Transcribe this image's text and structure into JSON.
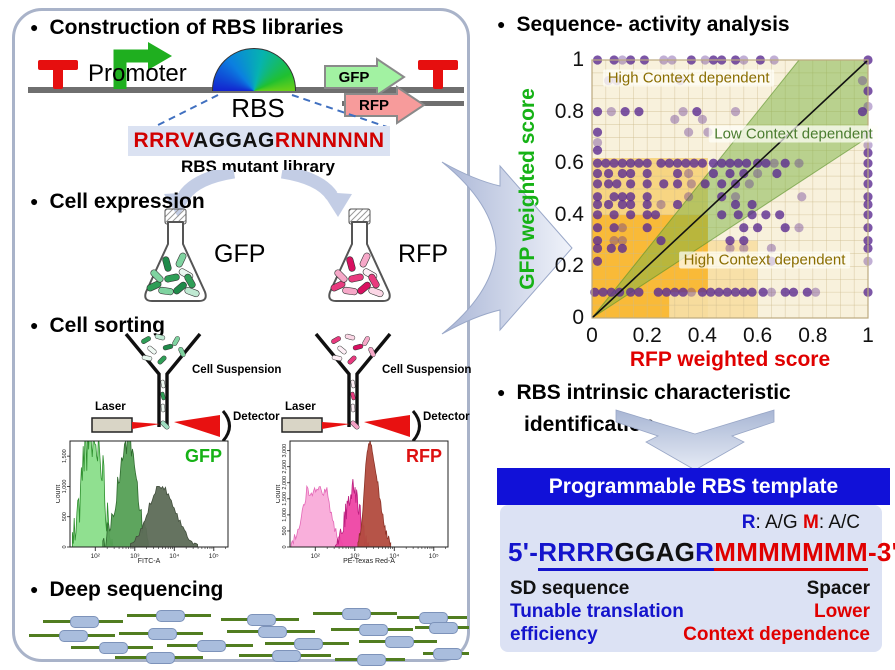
{
  "left_panel": {
    "construction": {
      "title": "Construction of RBS libraries",
      "promoter_label": "Promoter",
      "rbs_label": "RBS",
      "gfp_gene_label": "GFP",
      "rfp_gene_label": "RFP",
      "sequence_parts": {
        "sd_upstream": "RRRV",
        "core": "AGGAG",
        "spacer": "RNNNNNN"
      },
      "library_label": "RBS mutant library"
    },
    "expression": {
      "title": "Cell expression",
      "gfp_label": "GFP",
      "rfp_label": "RFP"
    },
    "sorting": {
      "title": "Cell sorting",
      "cell_suspension_label": "Cell Suspension",
      "laser_label": "Laser",
      "detector_label": "Detector"
    },
    "sequencing": {
      "title": "Deep sequencing",
      "reads": [
        [
          18,
          12,
          80
        ],
        [
          102,
          6,
          84
        ],
        [
          196,
          10,
          78
        ],
        [
          288,
          4,
          84
        ],
        [
          372,
          8,
          70
        ],
        [
          4,
          26,
          86
        ],
        [
          94,
          24,
          84
        ],
        [
          202,
          22,
          88
        ],
        [
          306,
          20,
          82
        ],
        [
          390,
          18,
          54
        ],
        [
          46,
          38,
          82
        ],
        [
          142,
          36,
          86
        ],
        [
          240,
          34,
          84
        ],
        [
          334,
          32,
          78
        ],
        [
          398,
          44,
          46
        ],
        [
          90,
          48,
          88
        ],
        [
          214,
          46,
          92
        ],
        [
          310,
          50,
          70
        ]
      ]
    }
  },
  "right_panel": {
    "analysis_title": "Sequence- activity analysis",
    "identification_title_line1": "RBS intrinsic characteristic",
    "identification_title_line2": "identification",
    "template": {
      "banner": "Programmable RBS template",
      "legend": {
        "r_key": "R",
        "r_def": ": A/G",
        "m_key": "M",
        "m_def": ": A/C"
      },
      "sequence": {
        "prefix": "5'-",
        "sd": "RRRR",
        "core": "GGAG",
        "r_link": "R",
        "spacer": "MMMMMMM",
        "suffix": "-3'"
      },
      "captions": {
        "sd": "SD sequence",
        "spacer": "Spacer",
        "left_line1": "Tunable translation",
        "left_line2": "efficiency",
        "right_line1": "Lower",
        "right_line2": "Context dependence"
      }
    }
  },
  "colors": {
    "accent_blue": "#1414cc",
    "strong_red": "#e00000",
    "banner_blue": "#1111d8",
    "gfp_green": "#16b216",
    "promoter_green": "#1faf1f",
    "terminator_red": "#e60f0f",
    "dot_purple": "#5b2c91",
    "panel_border": "#a9b3c9",
    "template_panel_bg": "#dce2f4"
  },
  "chart_data": [
    {
      "id": "scatter",
      "type": "scatter",
      "xlabel": "RFP weighted score",
      "ylabel": "GFP weighted score",
      "xlim": [
        0,
        1
      ],
      "ylim": [
        0,
        1
      ],
      "xticks": [
        "0",
        "0.2",
        "0.4",
        "0.6",
        "0.8",
        "1"
      ],
      "yticks": [
        "0",
        "0.2",
        "0.4",
        "0.6",
        "0.8",
        "1"
      ],
      "grid": true,
      "grid_step": 0.05,
      "legend_position": "none",
      "annotations": [
        {
          "text": "High Context dependent",
          "x": 0.35,
          "y": 0.93,
          "color": "#8a6d00"
        },
        {
          "text": "Low Context dependent",
          "x": 0.73,
          "y": 0.715,
          "color": "#4a7c2f"
        },
        {
          "text": "High Context dependent",
          "x": 0.625,
          "y": 0.225,
          "color": "#8a6d00"
        }
      ],
      "regions": [
        {
          "x0": 0,
          "y0": 0.4,
          "x1": 0.42,
          "y1": 0.62,
          "color": "rgba(246,189,56,0.55)"
        },
        {
          "x0": 0,
          "y0": 0.1,
          "x1": 0.42,
          "y1": 0.4,
          "color": "rgba(248,170,10,0.78)"
        },
        {
          "x0": 0,
          "y0": 0,
          "x1": 0.28,
          "y1": 0.1,
          "color": "rgba(248,170,10,0.78)"
        },
        {
          "x0": 0.28,
          "y0": 0,
          "x1": 0.42,
          "y1": 0.1,
          "color": "rgba(247,195,80,0.45)"
        },
        {
          "x0": 0.42,
          "y0": 0,
          "x1": 0.6,
          "y1": 0.3,
          "color": "rgba(247,200,90,0.40)"
        }
      ],
      "band_polygon": [
        [
          0,
          0
        ],
        [
          0.75,
          1
        ],
        [
          1,
          1
        ],
        [
          1,
          0.7
        ]
      ],
      "identity_line": [
        [
          0,
          0
        ],
        [
          1,
          1
        ]
      ],
      "point_color": "#5b2c91",
      "points": [
        [
          0.02,
          1,
          0
        ],
        [
          0.08,
          1,
          0
        ],
        [
          0.11,
          1,
          1
        ],
        [
          0.14,
          1,
          0
        ],
        [
          0.19,
          1,
          0
        ],
        [
          0.26,
          1,
          1
        ],
        [
          0.29,
          1,
          1
        ],
        [
          0.36,
          1,
          0
        ],
        [
          0.41,
          1,
          1
        ],
        [
          0.44,
          1,
          0
        ],
        [
          0.47,
          1,
          0
        ],
        [
          0.52,
          1,
          0
        ],
        [
          0.55,
          1,
          1
        ],
        [
          0.61,
          1,
          0
        ],
        [
          0.66,
          1,
          1
        ],
        [
          1,
          1,
          0
        ],
        [
          0.06,
          0.92,
          1
        ],
        [
          0.09,
          0.92,
          1
        ],
        [
          0.32,
          0.92,
          1
        ],
        [
          0.98,
          0.92,
          1
        ],
        [
          1,
          0.88,
          0
        ],
        [
          0.02,
          0.8,
          0
        ],
        [
          0.07,
          0.8,
          1
        ],
        [
          0.12,
          0.8,
          0
        ],
        [
          0.17,
          0.8,
          0
        ],
        [
          0.33,
          0.8,
          1
        ],
        [
          0.38,
          0.8,
          0
        ],
        [
          0.52,
          0.8,
          1
        ],
        [
          0.98,
          0.8,
          0
        ],
        [
          1,
          0.82,
          1
        ],
        [
          0.3,
          0.77,
          1
        ],
        [
          0.4,
          0.77,
          1
        ],
        [
          0.02,
          0.72,
          0
        ],
        [
          0.35,
          0.72,
          1
        ],
        [
          0.42,
          0.72,
          1
        ],
        [
          1,
          0.71,
          1
        ],
        [
          0.02,
          0.68,
          1
        ],
        [
          1,
          0.67,
          1
        ],
        [
          0.02,
          0.65,
          0
        ],
        [
          1,
          0.64,
          0
        ],
        [
          0.02,
          0.6,
          0
        ],
        [
          0.05,
          0.6,
          0
        ],
        [
          0.08,
          0.6,
          0
        ],
        [
          0.11,
          0.6,
          0
        ],
        [
          0.14,
          0.6,
          0
        ],
        [
          0.17,
          0.6,
          0
        ],
        [
          0.2,
          0.6,
          0
        ],
        [
          0.25,
          0.6,
          0
        ],
        [
          0.28,
          0.6,
          0
        ],
        [
          0.31,
          0.6,
          0
        ],
        [
          0.34,
          0.6,
          0
        ],
        [
          0.37,
          0.6,
          0
        ],
        [
          0.4,
          0.6,
          0
        ],
        [
          0.44,
          0.6,
          0
        ],
        [
          0.47,
          0.6,
          0
        ],
        [
          0.5,
          0.6,
          0
        ],
        [
          0.53,
          0.6,
          0
        ],
        [
          0.56,
          0.6,
          0
        ],
        [
          0.6,
          0.6,
          0
        ],
        [
          0.63,
          0.6,
          0
        ],
        [
          0.66,
          0.6,
          1
        ],
        [
          0.7,
          0.6,
          0
        ],
        [
          0.75,
          0.6,
          1
        ],
        [
          1,
          0.6,
          0
        ],
        [
          0.02,
          0.56,
          0
        ],
        [
          0.06,
          0.56,
          0
        ],
        [
          0.11,
          0.56,
          0
        ],
        [
          0.14,
          0.56,
          0
        ],
        [
          0.2,
          0.56,
          0
        ],
        [
          0.31,
          0.56,
          0
        ],
        [
          0.35,
          0.56,
          1
        ],
        [
          0.44,
          0.56,
          0
        ],
        [
          0.5,
          0.56,
          0
        ],
        [
          0.55,
          0.56,
          0
        ],
        [
          0.6,
          0.56,
          1
        ],
        [
          0.67,
          0.56,
          0
        ],
        [
          1,
          0.56,
          0
        ],
        [
          0.02,
          0.52,
          0
        ],
        [
          0.06,
          0.52,
          0
        ],
        [
          0.09,
          0.52,
          0
        ],
        [
          0.14,
          0.52,
          0
        ],
        [
          0.2,
          0.52,
          0
        ],
        [
          0.26,
          0.52,
          0
        ],
        [
          0.31,
          0.52,
          0
        ],
        [
          0.36,
          0.52,
          1
        ],
        [
          0.41,
          0.52,
          0
        ],
        [
          0.47,
          0.52,
          0
        ],
        [
          0.52,
          0.52,
          0
        ],
        [
          0.57,
          0.52,
          1
        ],
        [
          1,
          0.52,
          0
        ],
        [
          0.02,
          0.47,
          0
        ],
        [
          0.08,
          0.47,
          0
        ],
        [
          0.11,
          0.47,
          0
        ],
        [
          0.14,
          0.47,
          0
        ],
        [
          0.2,
          0.47,
          0
        ],
        [
          0.35,
          0.47,
          1
        ],
        [
          0.47,
          0.47,
          0
        ],
        [
          0.52,
          0.47,
          1
        ],
        [
          0.76,
          0.47,
          1
        ],
        [
          1,
          0.47,
          0
        ],
        [
          0.02,
          0.44,
          0
        ],
        [
          0.06,
          0.44,
          0
        ],
        [
          0.11,
          0.44,
          0
        ],
        [
          0.14,
          0.44,
          0
        ],
        [
          0.2,
          0.44,
          0
        ],
        [
          0.25,
          0.44,
          1
        ],
        [
          0.31,
          0.44,
          0
        ],
        [
          0.52,
          0.44,
          0
        ],
        [
          0.58,
          0.44,
          0
        ],
        [
          1,
          0.44,
          0
        ],
        [
          0.02,
          0.4,
          0
        ],
        [
          0.08,
          0.4,
          0
        ],
        [
          0.14,
          0.4,
          0
        ],
        [
          0.2,
          0.4,
          0
        ],
        [
          0.23,
          0.4,
          0
        ],
        [
          0.47,
          0.4,
          0
        ],
        [
          0.53,
          0.4,
          0
        ],
        [
          0.58,
          0.4,
          0
        ],
        [
          0.63,
          0.4,
          0
        ],
        [
          0.68,
          0.4,
          0
        ],
        [
          1,
          0.4,
          0
        ],
        [
          0.02,
          0.35,
          0
        ],
        [
          0.08,
          0.35,
          0
        ],
        [
          0.11,
          0.35,
          1
        ],
        [
          0.2,
          0.35,
          0
        ],
        [
          0.55,
          0.35,
          0
        ],
        [
          0.6,
          0.35,
          0
        ],
        [
          0.7,
          0.35,
          0
        ],
        [
          0.75,
          0.35,
          1
        ],
        [
          1,
          0.35,
          0
        ],
        [
          0.02,
          0.3,
          0
        ],
        [
          0.08,
          0.3,
          1
        ],
        [
          0.11,
          0.3,
          1
        ],
        [
          0.25,
          0.3,
          0
        ],
        [
          0.5,
          0.3,
          0
        ],
        [
          0.55,
          0.3,
          0
        ],
        [
          1,
          0.3,
          0
        ],
        [
          0.02,
          0.27,
          0
        ],
        [
          0.07,
          0.27,
          0
        ],
        [
          0.11,
          0.27,
          0
        ],
        [
          0.5,
          0.27,
          1
        ],
        [
          0.55,
          0.27,
          1
        ],
        [
          0.65,
          0.27,
          1
        ],
        [
          1,
          0.27,
          0
        ],
        [
          0.02,
          0.22,
          0
        ],
        [
          0.65,
          0.22,
          0
        ],
        [
          1,
          0.22,
          1
        ],
        [
          0.01,
          0.1,
          0
        ],
        [
          0.04,
          0.1,
          0
        ],
        [
          0.07,
          0.1,
          0
        ],
        [
          0.1,
          0.1,
          0
        ],
        [
          0.14,
          0.1,
          0
        ],
        [
          0.17,
          0.1,
          0
        ],
        [
          0.24,
          0.1,
          0
        ],
        [
          0.27,
          0.1,
          0
        ],
        [
          0.3,
          0.1,
          0
        ],
        [
          0.33,
          0.1,
          0
        ],
        [
          0.36,
          0.1,
          1
        ],
        [
          0.4,
          0.1,
          0
        ],
        [
          0.43,
          0.1,
          0
        ],
        [
          0.46,
          0.1,
          0
        ],
        [
          0.49,
          0.1,
          0
        ],
        [
          0.52,
          0.1,
          0
        ],
        [
          0.55,
          0.1,
          0
        ],
        [
          0.58,
          0.1,
          0
        ],
        [
          0.62,
          0.1,
          0
        ],
        [
          0.65,
          0.1,
          1
        ],
        [
          0.7,
          0.1,
          0
        ],
        [
          0.73,
          0.1,
          0
        ],
        [
          0.78,
          0.1,
          0
        ],
        [
          0.81,
          0.1,
          1
        ],
        [
          1,
          0.1,
          0
        ]
      ]
    },
    {
      "id": "gfp_hist",
      "type": "area",
      "title": "GFP",
      "title_color": "#16b216",
      "xlabel": "FITC-A",
      "ylabel": "Count",
      "xticks": [
        "10²",
        "10³",
        "10⁴",
        "10⁵"
      ],
      "yticks": [
        [
          0,
          "0"
        ],
        [
          500,
          "500"
        ],
        [
          1000,
          "1,000"
        ],
        [
          1500,
          "1,500"
        ]
      ],
      "ymax": 1750,
      "peaks": [
        {
          "cx": 0.14,
          "wL": 0.05,
          "wR": 0.055,
          "h": 0.95,
          "jag": 0.5,
          "plateau": true,
          "seed": 11,
          "fill": "#8ade8a",
          "edge": "#2e8f2e"
        },
        {
          "cx": 0.37,
          "wL": 0.065,
          "wR": 0.05,
          "h": 0.99,
          "jag": 0.22,
          "plateau": false,
          "seed": 23,
          "fill": "#55a055",
          "edge": "#2f6b2f"
        },
        {
          "cx": 0.57,
          "wL": 0.075,
          "wR": 0.095,
          "h": 0.58,
          "jag": 0.1,
          "plateau": false,
          "seed": 31,
          "fill": "#5d6b57",
          "edge": "#414e3c"
        }
      ]
    },
    {
      "id": "rfp_hist",
      "type": "area",
      "title": "RFP",
      "title_color": "#dd1111",
      "xlabel": "PE-Texas Red-A",
      "ylabel": "Count",
      "xticks": [
        "10²",
        "10³",
        "10⁴",
        "10⁵"
      ],
      "yticks": [
        [
          0,
          "0"
        ],
        [
          500,
          "500"
        ],
        [
          1000,
          "1,000"
        ],
        [
          1500,
          "1,500"
        ],
        [
          2000,
          "2,000"
        ],
        [
          2500,
          "2,500"
        ],
        [
          3000,
          "3,000"
        ]
      ],
      "ymax": 3300,
      "peaks": [
        {
          "cx": 0.17,
          "wL": 0.065,
          "wR": 0.065,
          "h": 0.53,
          "jag": 0.18,
          "plateau": true,
          "seed": 41,
          "fill": "#f9abd9",
          "edge": "#e367b6"
        },
        {
          "cx": 0.4,
          "wL": 0.045,
          "wR": 0.04,
          "h": 0.56,
          "jag": 0.35,
          "plateau": false,
          "seed": 53,
          "fill": "#ee44a4",
          "edge": "#bc1d7e"
        },
        {
          "cx": 0.5,
          "wL": 0.028,
          "wR": 0.055,
          "h": 0.98,
          "jag": 0.08,
          "plateau": false,
          "seed": 61,
          "fill": "#b24b3e",
          "edge": "#8c3328"
        }
      ]
    }
  ]
}
